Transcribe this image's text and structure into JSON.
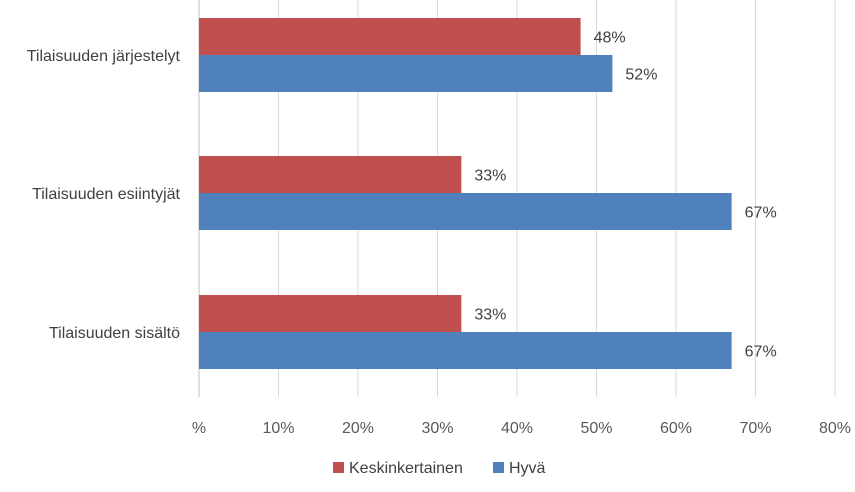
{
  "chart_data": {
    "type": "bar",
    "orientation": "horizontal",
    "categories": [
      "Tilaisuuden järjestelyt",
      "Tilaisuuden esiintyjät",
      "Tilaisuuden sisältö"
    ],
    "series": [
      {
        "name": "Keskinkertainen",
        "color": "#c0504d",
        "values": [
          48,
          33,
          33
        ],
        "labels": [
          "48%",
          "33%",
          "33%"
        ]
      },
      {
        "name": "Hyvä",
        "color": "#4f81bd",
        "values": [
          52,
          67,
          67
        ],
        "labels": [
          "52%",
          "67%",
          "67%"
        ]
      }
    ],
    "xlim": [
      0,
      80
    ],
    "xticks": [
      0,
      10,
      20,
      30,
      40,
      50,
      60,
      70,
      80
    ],
    "xtick_labels": [
      "%",
      "10%",
      "20%",
      "30%",
      "40%",
      "50%",
      "60%",
      "70%",
      "80%"
    ],
    "grid": true,
    "legend_position": "bottom",
    "title": "",
    "xlabel": "",
    "ylabel": ""
  }
}
